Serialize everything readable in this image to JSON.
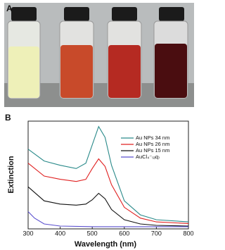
{
  "panel_a": {
    "label": "A"
  },
  "chart_data": {
    "type": "line",
    "panel_label": "B",
    "xlabel": "Wavelength (nm)",
    "ylabel": "Extinction",
    "xlim": [
      300,
      800
    ],
    "xticks": [
      300,
      400,
      500,
      600,
      700,
      800
    ],
    "ylim": [
      0,
      1
    ],
    "series": [
      {
        "name": "Au NPs 34 nm",
        "color": "#2a8a8a",
        "x": [
          300,
          350,
          400,
          450,
          480,
          500,
          520,
          540,
          560,
          600,
          650,
          700,
          800
        ],
        "values": [
          0.74,
          0.63,
          0.59,
          0.56,
          0.61,
          0.78,
          0.95,
          0.85,
          0.59,
          0.26,
          0.13,
          0.085,
          0.065
        ]
      },
      {
        "name": "Au NPs 26 nm",
        "color": "#e02020",
        "x": [
          300,
          350,
          400,
          450,
          480,
          500,
          520,
          540,
          560,
          600,
          650,
          700,
          800
        ],
        "values": [
          0.61,
          0.49,
          0.46,
          0.44,
          0.46,
          0.56,
          0.65,
          0.58,
          0.41,
          0.2,
          0.1,
          0.065,
          0.05
        ]
      },
      {
        "name": "Au NPs 15 nm",
        "color": "#111111",
        "x": [
          300,
          350,
          400,
          450,
          480,
          500,
          520,
          540,
          560,
          600,
          650,
          700,
          800
        ],
        "values": [
          0.39,
          0.26,
          0.23,
          0.22,
          0.23,
          0.27,
          0.33,
          0.28,
          0.18,
          0.085,
          0.046,
          0.033,
          0.026
        ]
      },
      {
        "name": "AuCl₄⁻₍ₐq₎",
        "color": "#5a4fcf",
        "x": [
          300,
          320,
          350,
          400,
          500,
          800
        ],
        "values": [
          0.16,
          0.1,
          0.046,
          0.026,
          0.02,
          0.02
        ]
      }
    ]
  }
}
